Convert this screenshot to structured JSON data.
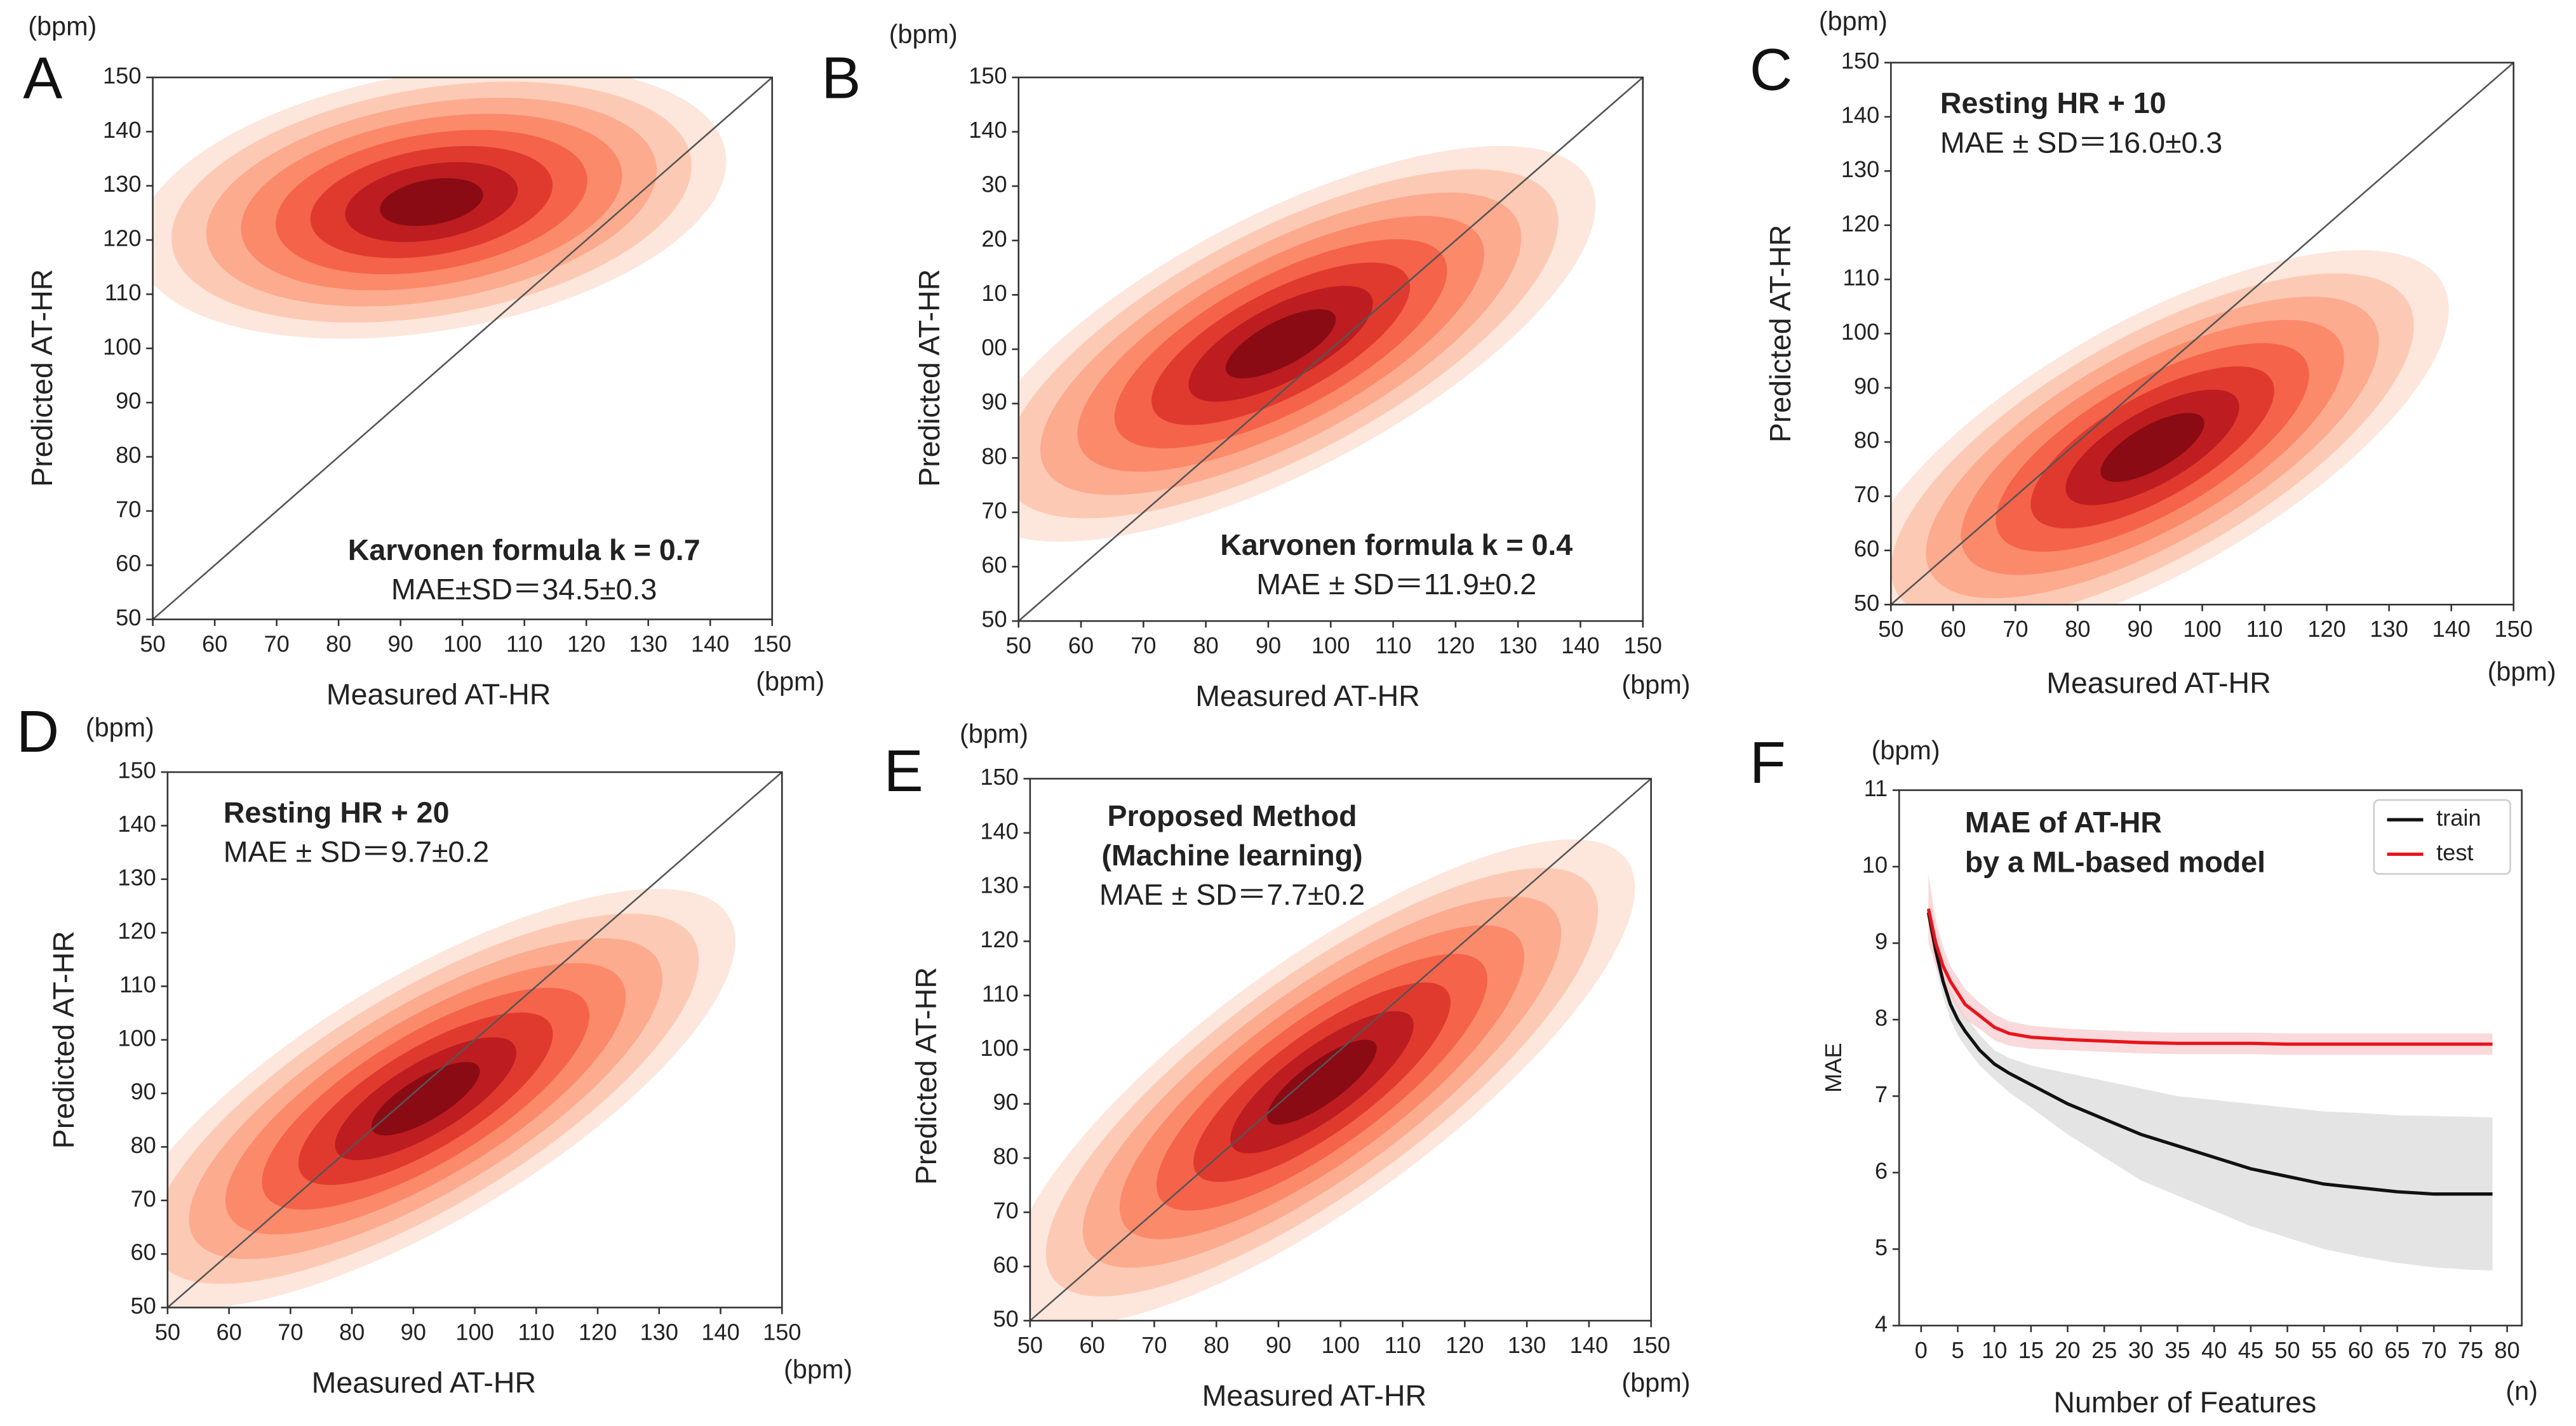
{
  "chart_data": [
    {
      "type": "density",
      "panel": "A",
      "y_unit": "(bpm)",
      "x_unit": "(bpm)",
      "xlabel": "Measured AT-HR",
      "ylabel": "Predicted AT-HR",
      "xlim": [
        50,
        150
      ],
      "ylim": [
        50,
        150
      ],
      "xticks": [
        50,
        60,
        70,
        80,
        90,
        100,
        110,
        120,
        130,
        140,
        150
      ],
      "yticks": [
        50,
        60,
        70,
        80,
        90,
        100,
        110,
        120,
        130,
        140,
        150
      ],
      "diagonal": true,
      "annotation_title": [
        "Karvonen formula k = 0.7"
      ],
      "annotation": "MAE±SD＝34.5±0.3",
      "density": {
        "cx": 95,
        "cy": 127,
        "sx": 17,
        "sy": 9,
        "rho": 0.3
      }
    },
    {
      "type": "density",
      "panel": "B",
      "y_unit": "(bpm)",
      "x_unit": "(bpm)",
      "xlabel": "Measured AT-HR",
      "ylabel": "Predicted AT-HR",
      "xlim": [
        50,
        150
      ],
      "ylim": [
        50,
        150
      ],
      "xticks": [
        50,
        60,
        70,
        80,
        90,
        100,
        110,
        120,
        130,
        140,
        150
      ],
      "yticks": [
        50,
        60,
        70,
        80,
        90,
        {
          "value": 100,
          "label": "00"
        },
        {
          "value": 110,
          "label": "10"
        },
        {
          "value": 120,
          "label": "20"
        },
        {
          "value": 130,
          "label": "30"
        },
        140,
        150
      ],
      "diagonal": true,
      "annotation_title": [
        "Karvonen formula k = 0.4"
      ],
      "annotation": "MAE ± SD＝11.9±0.2",
      "density": {
        "cx": 92,
        "cy": 101,
        "sx": 18,
        "sy": 13,
        "rho": 0.7
      }
    },
    {
      "type": "density",
      "panel": "C",
      "y_unit": "(bpm)",
      "x_unit": "(bpm)",
      "xlabel": "Measured AT-HR",
      "ylabel": "Predicted AT-HR",
      "xlim": [
        50,
        150
      ],
      "ylim": [
        50,
        150
      ],
      "xticks": [
        50,
        60,
        70,
        80,
        90,
        100,
        110,
        120,
        130,
        140,
        150
      ],
      "yticks": [
        50,
        60,
        70,
        80,
        90,
        100,
        110,
        120,
        130,
        140,
        150
      ],
      "diagonal": true,
      "annotation_title": [
        "Resting HR + 10"
      ],
      "annotation": "MAE ± SD＝16.0±0.3",
      "density": {
        "cx": 92,
        "cy": 79,
        "sx": 17,
        "sy": 13,
        "rho": 0.7
      }
    },
    {
      "type": "density",
      "panel": "D",
      "y_unit": "(bpm)",
      "x_unit": "(bpm)",
      "xlabel": "Measured AT-HR",
      "ylabel": "Predicted AT-HR",
      "xlim": [
        50,
        150
      ],
      "ylim": [
        50,
        150
      ],
      "xticks": [
        50,
        60,
        70,
        80,
        90,
        100,
        110,
        120,
        130,
        140,
        150
      ],
      "yticks": [
        50,
        60,
        70,
        80,
        90,
        100,
        110,
        120,
        130,
        140,
        150
      ],
      "diagonal": true,
      "annotation_title": [
        "Resting HR + 20"
      ],
      "annotation": "MAE ± SD＝9.7±0.2",
      "density": {
        "cx": 92,
        "cy": 89,
        "sx": 18,
        "sy": 14,
        "rho": 0.75
      }
    },
    {
      "type": "density",
      "panel": "E",
      "y_unit": "(bpm)",
      "x_unit": "(bpm)",
      "xlabel": "Measured AT-HR",
      "ylabel": "Predicted AT-HR",
      "xlim": [
        50,
        150
      ],
      "ylim": [
        50,
        150
      ],
      "xticks": [
        50,
        60,
        70,
        80,
        90,
        100,
        110,
        120,
        130,
        140,
        150
      ],
      "yticks": [
        50,
        60,
        70,
        80,
        90,
        100,
        110,
        120,
        130,
        140,
        150
      ],
      "diagonal": true,
      "annotation_title": [
        "Proposed Method",
        "(Machine learning)"
      ],
      "annotation": "MAE ± SD＝7.7±0.2",
      "density": {
        "cx": 97,
        "cy": 94,
        "sx": 18,
        "sy": 16,
        "rho": 0.8
      }
    },
    {
      "type": "line",
      "panel": "F",
      "y_unit": "(bpm)",
      "x_unit": "(n)",
      "xlabel": "Number of Features",
      "ylabel": "MAE",
      "xlim": [
        -3,
        82
      ],
      "ylim": [
        4,
        11
      ],
      "xticks": [
        0,
        5,
        10,
        15,
        20,
        25,
        30,
        35,
        40,
        45,
        50,
        55,
        60,
        65,
        70,
        75,
        80
      ],
      "yticks": [
        4,
        5,
        6,
        7,
        8,
        9,
        10,
        11
      ],
      "annotation_title": [
        "MAE of AT-HR",
        "by a ML-based model"
      ],
      "legend": "upper right",
      "x": [
        1,
        2,
        3,
        4,
        5,
        6,
        8,
        10,
        12,
        15,
        20,
        25,
        30,
        35,
        40,
        45,
        50,
        55,
        60,
        65,
        70,
        75,
        78
      ],
      "series": [
        {
          "name": "train",
          "color": "#111111",
          "band_color": "#d9d9d9",
          "values": [
            9.4,
            8.9,
            8.5,
            8.2,
            8.0,
            7.85,
            7.6,
            7.42,
            7.3,
            7.15,
            6.9,
            6.7,
            6.5,
            6.35,
            6.2,
            6.05,
            5.95,
            5.85,
            5.8,
            5.75,
            5.72,
            5.72,
            5.72
          ],
          "band_upper": [
            9.6,
            9.1,
            8.7,
            8.4,
            8.2,
            8.05,
            7.8,
            7.6,
            7.5,
            7.4,
            7.3,
            7.2,
            7.1,
            7.0,
            6.95,
            6.9,
            6.85,
            6.8,
            6.78,
            6.75,
            6.74,
            6.73,
            6.72
          ],
          "band_lower": [
            9.2,
            8.7,
            8.3,
            8.0,
            7.8,
            7.65,
            7.4,
            7.22,
            7.05,
            6.85,
            6.5,
            6.2,
            5.9,
            5.7,
            5.5,
            5.3,
            5.15,
            5.0,
            4.9,
            4.82,
            4.76,
            4.73,
            4.72
          ]
        },
        {
          "name": "test",
          "color": "#e8141b",
          "band_color": "#f7c9cc",
          "values": [
            9.45,
            9.0,
            8.7,
            8.5,
            8.35,
            8.2,
            8.05,
            7.9,
            7.82,
            7.77,
            7.74,
            7.72,
            7.7,
            7.69,
            7.69,
            7.69,
            7.68,
            7.68,
            7.68,
            7.68,
            7.68,
            7.68,
            7.68
          ],
          "band_upper": [
            9.9,
            9.3,
            8.95,
            8.7,
            8.55,
            8.4,
            8.22,
            8.07,
            7.98,
            7.92,
            7.88,
            7.86,
            7.84,
            7.83,
            7.83,
            7.83,
            7.82,
            7.82,
            7.82,
            7.82,
            7.82,
            7.82,
            7.82
          ],
          "band_lower": [
            9.0,
            8.7,
            8.45,
            8.3,
            8.15,
            8.0,
            7.88,
            7.73,
            7.66,
            7.62,
            7.6,
            7.58,
            7.56,
            7.55,
            7.55,
            7.55,
            7.54,
            7.54,
            7.54,
            7.54,
            7.54,
            7.54,
            7.54
          ]
        }
      ]
    }
  ]
}
